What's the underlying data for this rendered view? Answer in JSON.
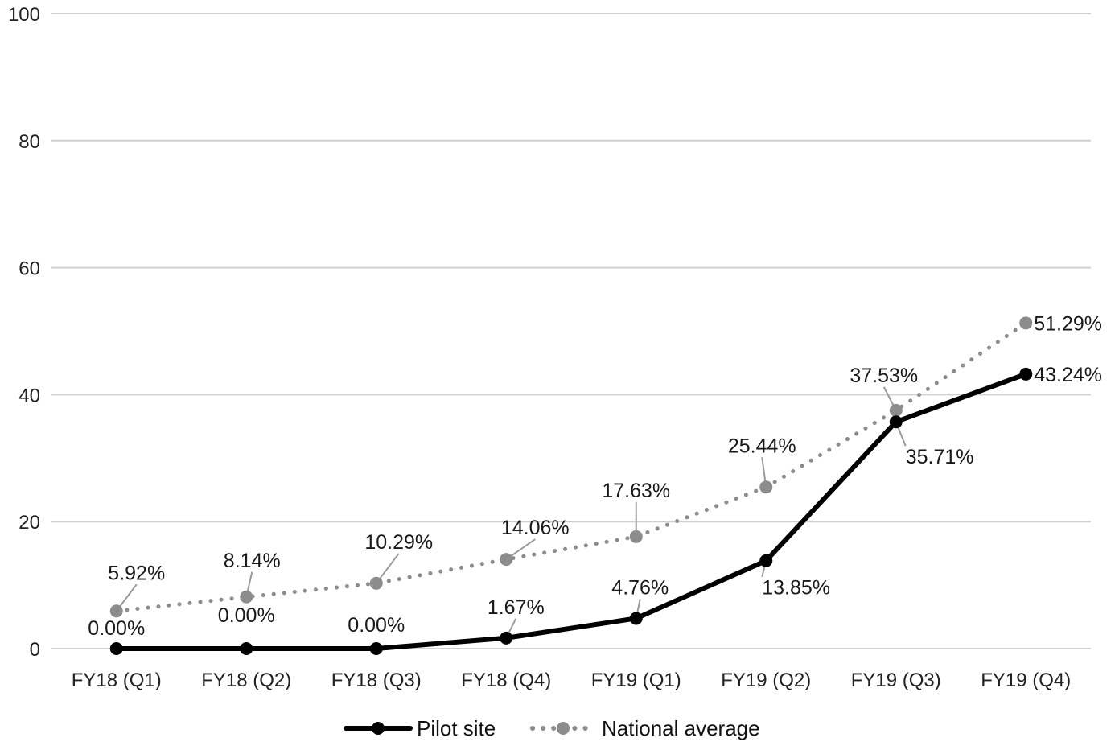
{
  "chart_data": {
    "type": "line",
    "title": "",
    "xlabel": "",
    "ylabel": "",
    "categories": [
      "FY18 (Q1)",
      "FY18 (Q2)",
      "FY18 (Q3)",
      "FY18 (Q4)",
      "FY19 (Q1)",
      "FY19 (Q2)",
      "FY19 (Q3)",
      "FY19 (Q4)"
    ],
    "ylim": [
      0,
      100
    ],
    "yticks": [
      "0",
      "20",
      "40",
      "60",
      "80",
      "100"
    ],
    "grid": true,
    "legend_position": "bottom",
    "series": [
      {
        "name": "Pilot site",
        "values": [
          0.0,
          0.0,
          0.0,
          1.67,
          4.76,
          13.85,
          35.71,
          43.24
        ],
        "labels": [
          "0.00%",
          "0.00%",
          "0.00%",
          "1.67%",
          "4.76%",
          "13.85%",
          "35.71%",
          "43.24%"
        ],
        "color": "#000000",
        "style": "solid"
      },
      {
        "name": "National average",
        "values": [
          5.92,
          8.14,
          10.29,
          14.06,
          17.63,
          25.44,
          37.53,
          51.29
        ],
        "labels": [
          "5.92%",
          "8.14%",
          "10.29%",
          "14.06%",
          "17.63%",
          "25.44%",
          "37.53%",
          "51.29%"
        ],
        "color": "#8c8c8c",
        "style": "dotted"
      }
    ]
  }
}
